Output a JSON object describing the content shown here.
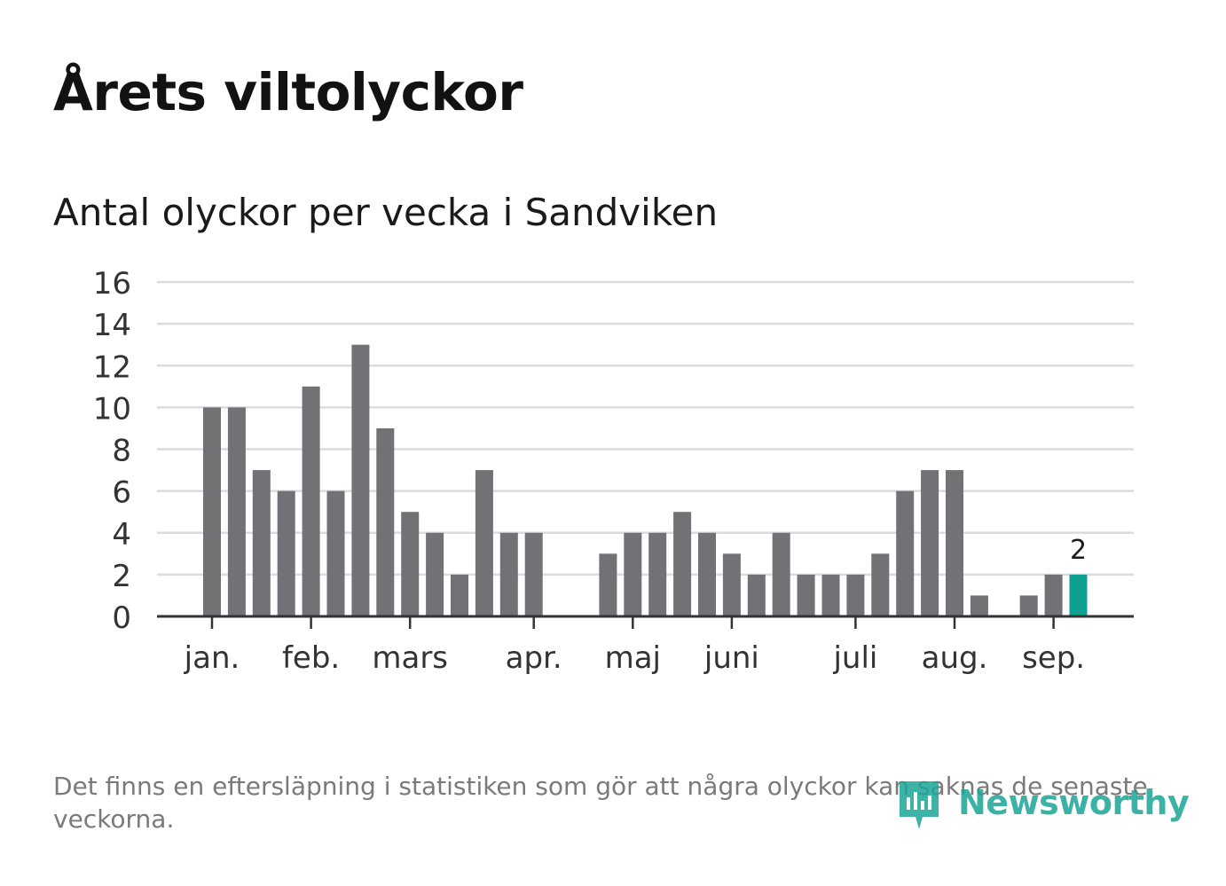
{
  "title": "Årets viltolyckor",
  "subtitle": "Antal olyckor per vecka i Sandviken",
  "footnote": "Det finns en eftersläpning i statistiken som gör att några olyckor kan saknas de senaste veckorna.",
  "logo": {
    "text": "Newsworthy",
    "icon": "newsworthy-logo-icon",
    "color": "#1ba597"
  },
  "chart_data": {
    "type": "bar",
    "title": "Årets viltolyckor",
    "subtitle": "Antal olyckor per vecka i Sandviken",
    "xlabel": "",
    "ylabel": "",
    "ylim": [
      0,
      16
    ],
    "yticks": [
      0,
      2,
      4,
      6,
      8,
      10,
      12,
      14,
      16
    ],
    "grid": true,
    "legend": "none",
    "month_ticks": [
      {
        "label": "jan.",
        "week": 1
      },
      {
        "label": "feb.",
        "week": 5
      },
      {
        "label": "mars",
        "week": 9
      },
      {
        "label": "apr.",
        "week": 14
      },
      {
        "label": "maj",
        "week": 18
      },
      {
        "label": "juni",
        "week": 22
      },
      {
        "label": "juli",
        "week": 27
      },
      {
        "label": "aug.",
        "week": 31
      },
      {
        "label": "sep.",
        "week": 35
      }
    ],
    "weeks": [
      1,
      2,
      3,
      4,
      5,
      6,
      7,
      8,
      9,
      10,
      11,
      12,
      13,
      14,
      15,
      16,
      17,
      18,
      19,
      20,
      21,
      22,
      23,
      24,
      25,
      26,
      27,
      28,
      29,
      30,
      31,
      32,
      33,
      34,
      35,
      36
    ],
    "values": [
      10,
      10,
      7,
      6,
      11,
      6,
      13,
      9,
      5,
      4,
      2,
      7,
      4,
      4,
      0,
      0,
      3,
      4,
      4,
      5,
      4,
      3,
      2,
      4,
      2,
      2,
      2,
      3,
      6,
      7,
      7,
      1,
      0,
      1,
      2,
      2
    ],
    "highlight_index": 35,
    "highlight_label": "2",
    "colors": {
      "bar": "#727176",
      "highlight": "#0fa091",
      "grid": "#dcdcdc",
      "axis": "#333333"
    }
  }
}
